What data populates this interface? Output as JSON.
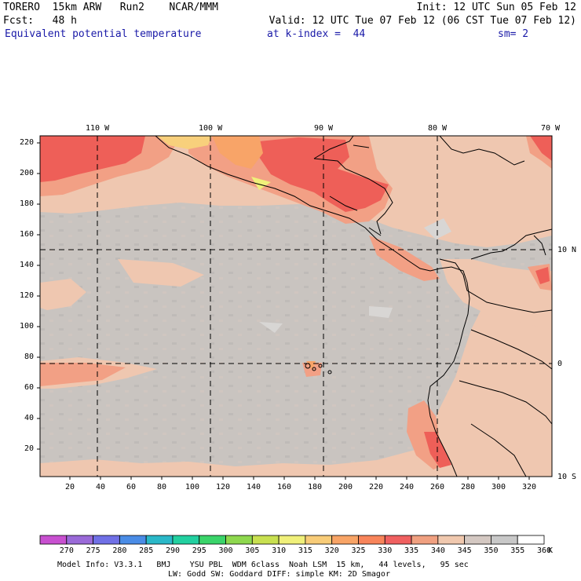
{
  "header": {
    "line1_left": "TORERO  15km ARW   Run2    NCAR/MMM",
    "line1_right": "Init: 12 UTC Sun 05 Feb 12",
    "line2_left": "Fcst:   48 h",
    "line2_right": "Valid: 12 UTC Tue 07 Feb 12 (06 CST Tue 07 Feb 12)",
    "field_name": "Equivalent potential temperature",
    "level": "at k-index =  44",
    "smoothing": "sm= 2"
  },
  "axes": {
    "top_lon_labels": [
      "110 W",
      "100 W",
      "90 W",
      "80 W",
      "70 W"
    ],
    "right_lat_labels": [
      "10 N",
      "0",
      "10 S"
    ],
    "left_grid_labels": [
      "220",
      "200",
      "180",
      "160",
      "140",
      "120",
      "100",
      "80",
      "60",
      "40",
      "20"
    ],
    "bottom_grid_labels": [
      "20",
      "40",
      "60",
      "80",
      "100",
      "120",
      "140",
      "160",
      "180",
      "200",
      "220",
      "240",
      "260",
      "280",
      "300",
      "320"
    ]
  },
  "colorbar": {
    "unit": "K",
    "labels": [
      "270",
      "275",
      "280",
      "285",
      "290",
      "295",
      "300",
      "305",
      "310",
      "315",
      "320",
      "325",
      "330",
      "335",
      "340",
      "345",
      "350",
      "355",
      "360"
    ],
    "colors": [
      "#c850d0",
      "#9a6ad8",
      "#7070e6",
      "#4a8ce6",
      "#2ab8c8",
      "#22d0a0",
      "#3ad46a",
      "#8ed84e",
      "#c8e050",
      "#f0f07a",
      "#f8cc78",
      "#f8a466",
      "#f8845a",
      "#f06060",
      "#f0a080",
      "#f0c8ae",
      "#d4c8c2",
      "#c8c8c8",
      "#ffffff"
    ]
  },
  "footer": {
    "line1": "Model Info: V3.3.1   BMJ    YSU PBL  WDM 6class  Noah LSM  15 km,   44 levels,   95 sec",
    "line2": "LW: Godd SW: Goddard DIFF: simple KM: 2D Smagor"
  }
}
